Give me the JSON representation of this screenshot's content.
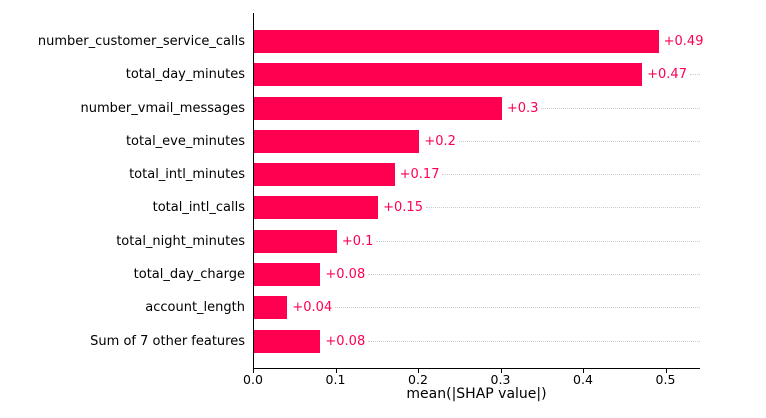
{
  "figure": {
    "background": "#ffffff",
    "text_color": "#000000"
  },
  "chart_data": {
    "type": "bar",
    "orientation": "horizontal",
    "title": "",
    "xlabel": "mean(|SHAP value|)",
    "ylabel": "",
    "categories": [
      "number_customer_service_calls",
      "total_day_minutes",
      "number_vmail_messages",
      "total_eve_minutes",
      "total_intl_minutes",
      "total_intl_calls",
      "total_night_minutes",
      "total_day_charge",
      "account_length",
      "Sum of 7 other features"
    ],
    "values": [
      0.49,
      0.47,
      0.3,
      0.2,
      0.17,
      0.15,
      0.1,
      0.08,
      0.04,
      0.08
    ],
    "value_labels": [
      "+0.49",
      "+0.47",
      "+0.3",
      "+0.2",
      "+0.17",
      "+0.15",
      "+0.1",
      "+0.08",
      "+0.04",
      "+0.08"
    ],
    "xticks": [
      0.0,
      0.1,
      0.2,
      0.3,
      0.4,
      0.5
    ],
    "xtick_labels": [
      "0.0",
      "0.1",
      "0.2",
      "0.3",
      "0.4",
      "0.5"
    ],
    "xlim": [
      0,
      0.542
    ],
    "bar_color": "#ff0051",
    "value_label_color": "#ff0051",
    "gridline_style": "dotted",
    "gridline_color": "#cccccc",
    "grid": "horizontal dotted per-row",
    "legend_position": "none"
  }
}
